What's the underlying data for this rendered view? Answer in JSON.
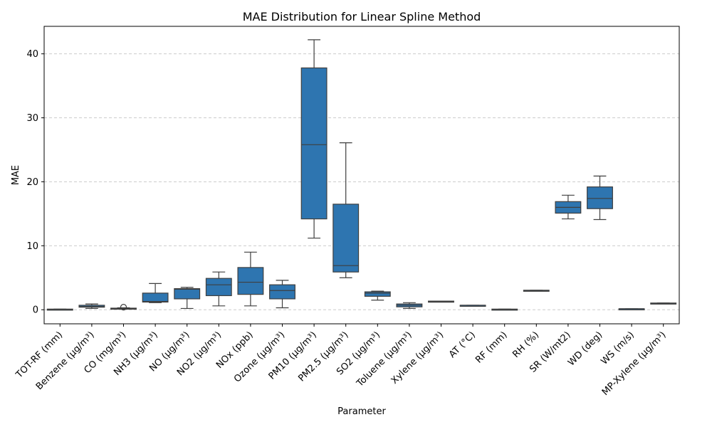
{
  "chart_data": {
    "type": "box",
    "title": "MAE Distribution for Linear Spline Method",
    "xlabel": "Parameter",
    "ylabel": "MAE",
    "ylim": [
      -2.2,
      44.3
    ],
    "yticks": [
      0,
      10,
      20,
      30,
      40
    ],
    "grid": "y-dashed",
    "box_color": "#2e75b0",
    "categories": [
      "TOT-RF (mm)",
      "Benzene (µg/m³)",
      "CO (mg/m³)",
      "NH3 (µg/m³)",
      "NO (µg/m³)",
      "NO2 (µg/m³)",
      "NOx (ppb)",
      "Ozone (µg/m³)",
      "PM10 (µg/m³)",
      "PM2.5 (µg/m³)",
      "SO2 (µg/m³)",
      "Toluene (µg/m³)",
      "Xylene (µg/m³)",
      "AT (°C)",
      "RF (mm)",
      "RH (%)",
      "SR (W/mt2)",
      "WD (deg)",
      "WS (m/s)",
      "MP-Xylene (µg/m³)"
    ],
    "boxes": [
      {
        "min": 0.0,
        "q1": 0.0,
        "median": 0.05,
        "q3": 0.1,
        "max": 0.1,
        "outliers": []
      },
      {
        "min": 0.2,
        "q1": 0.4,
        "median": 0.5,
        "q3": 0.7,
        "max": 0.9,
        "outliers": []
      },
      {
        "min": 0.1,
        "q1": 0.15,
        "median": 0.2,
        "q3": 0.25,
        "max": 0.3,
        "outliers": [
          0.4
        ]
      },
      {
        "min": 1.1,
        "q1": 1.2,
        "median": 1.3,
        "q3": 2.6,
        "max": 4.1,
        "outliers": []
      },
      {
        "min": 0.2,
        "q1": 1.7,
        "median": 3.2,
        "q3": 3.3,
        "max": 3.5,
        "outliers": []
      },
      {
        "min": 0.6,
        "q1": 2.2,
        "median": 3.9,
        "q3": 4.9,
        "max": 5.9,
        "outliers": []
      },
      {
        "min": 0.6,
        "q1": 2.4,
        "median": 4.3,
        "q3": 6.6,
        "max": 9.0,
        "outliers": []
      },
      {
        "min": 0.3,
        "q1": 1.7,
        "median": 3.0,
        "q3": 3.9,
        "max": 4.6,
        "outliers": []
      },
      {
        "min": 11.2,
        "q1": 14.2,
        "median": 25.8,
        "q3": 37.8,
        "max": 42.2,
        "outliers": []
      },
      {
        "min": 5.0,
        "q1": 5.9,
        "median": 6.9,
        "q3": 16.5,
        "max": 26.1,
        "outliers": []
      },
      {
        "min": 1.5,
        "q1": 2.1,
        "median": 2.6,
        "q3": 2.8,
        "max": 2.9,
        "outliers": []
      },
      {
        "min": 0.2,
        "q1": 0.45,
        "median": 0.7,
        "q3": 0.9,
        "max": 1.1,
        "outliers": []
      },
      {
        "min": 1.3,
        "q1": 1.3,
        "median": 1.3,
        "q3": 1.35,
        "max": 1.35,
        "outliers": []
      },
      {
        "min": 0.65,
        "q1": 0.65,
        "median": 0.7,
        "q3": 0.7,
        "max": 0.7,
        "outliers": []
      },
      {
        "min": 0.0,
        "q1": 0.0,
        "median": 0.05,
        "q3": 0.1,
        "max": 0.1,
        "outliers": []
      },
      {
        "min": 3.0,
        "q1": 3.0,
        "median": 3.0,
        "q3": 3.05,
        "max": 3.05,
        "outliers": []
      },
      {
        "min": 14.2,
        "q1": 15.1,
        "median": 16.0,
        "q3": 16.9,
        "max": 17.9,
        "outliers": []
      },
      {
        "min": 14.1,
        "q1": 15.8,
        "median": 17.4,
        "q3": 19.2,
        "max": 20.9,
        "outliers": []
      },
      {
        "min": 0.1,
        "q1": 0.1,
        "median": 0.15,
        "q3": 0.15,
        "max": 0.15,
        "outliers": []
      },
      {
        "min": 1.0,
        "q1": 1.0,
        "median": 1.0,
        "q3": 1.05,
        "max": 1.05,
        "outliers": []
      }
    ]
  }
}
